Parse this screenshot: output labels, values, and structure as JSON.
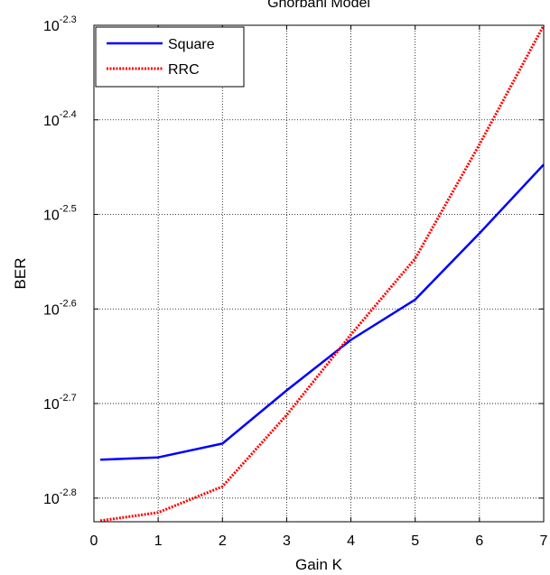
{
  "chart_data": {
    "type": "line",
    "title": "Ghorbani Model",
    "xlabel": "Gain K",
    "ylabel": "BER",
    "xlim": [
      0,
      7
    ],
    "ylim_log10": [
      -2.825,
      -2.3
    ],
    "y_scale": "log10",
    "grid": true,
    "legend_position": "top-left",
    "x_ticks": [
      "0",
      "1",
      "2",
      "3",
      "4",
      "5",
      "6",
      "7"
    ],
    "y_ticks": [
      {
        "base": "10",
        "exp": "-2.3",
        "log10": -2.3
      },
      {
        "base": "10",
        "exp": "-2.4",
        "log10": -2.4
      },
      {
        "base": "10",
        "exp": "-2.5",
        "log10": -2.5
      },
      {
        "base": "10",
        "exp": "-2.6",
        "log10": -2.6
      },
      {
        "base": "10",
        "exp": "-2.7",
        "log10": -2.7
      },
      {
        "base": "10",
        "exp": "-2.8",
        "log10": -2.8
      }
    ],
    "series": [
      {
        "name": "Square",
        "color": "#0000ff",
        "style": "solid",
        "x": [
          0.1,
          1,
          2,
          3,
          4,
          5,
          6,
          7
        ],
        "y": [
          0.00174,
          0.00175,
          0.00181,
          0.00206,
          0.00233,
          0.00257,
          0.00302,
          0.00357
        ]
      },
      {
        "name": "RRC",
        "color": "#ff0000",
        "style": "dotted",
        "x": [
          0.1,
          1,
          2,
          3,
          4,
          5,
          6,
          7
        ],
        "y": [
          0.0015,
          0.00153,
          0.00163,
          0.00194,
          0.00236,
          0.00284,
          0.00375,
          0.00501
        ]
      }
    ]
  }
}
